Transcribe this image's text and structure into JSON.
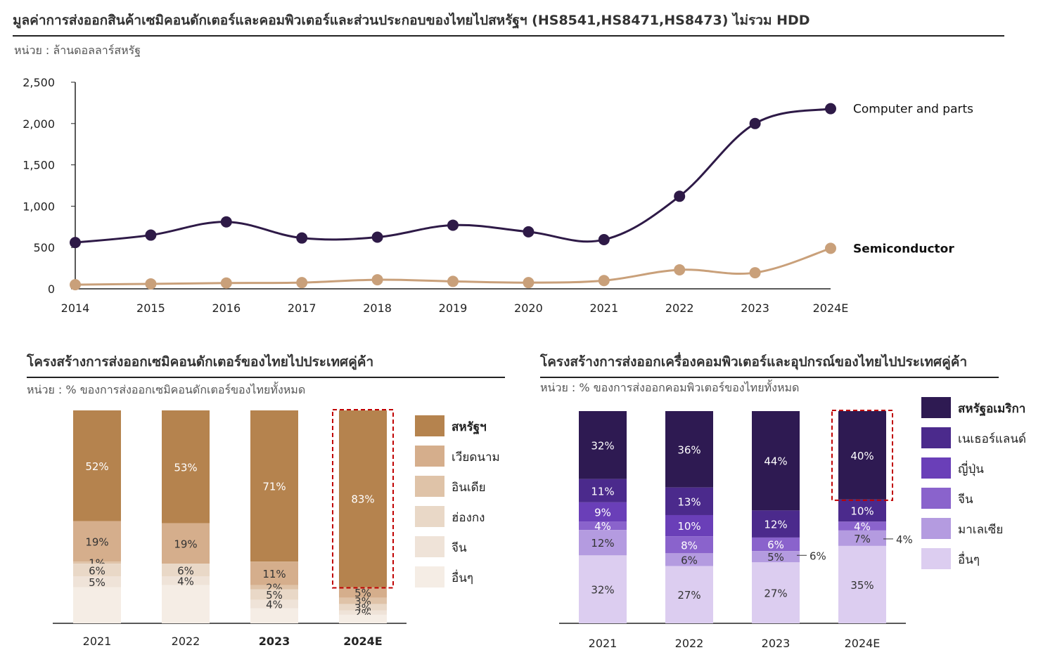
{
  "title": "มูลค่าการส่งออกสินค้าเซมิคอนดักเตอร์และคอมพิวเตอร์และส่วนประกอบของไทยไปสหรัฐฯ  (HS8541,HS8471,HS8473) ไม่รวม HDD",
  "unit_top": "หน่วย : ล้านดอลลาร์สหรัฐ",
  "chart_data": [
    {
      "type": "line",
      "x": [
        "2014",
        "2015",
        "2016",
        "2017",
        "2018",
        "2019",
        "2020",
        "2021",
        "2022",
        "2023",
        "2024E"
      ],
      "ylim": [
        0,
        2500
      ],
      "yticks": [
        "0",
        "500",
        "1,000",
        "1,500",
        "2,000",
        "2,500"
      ],
      "ytick_values": [
        0,
        500,
        1000,
        1500,
        2000,
        2500
      ],
      "series": [
        {
          "name": "Computer and parts",
          "color": "#2e1a47",
          "values": [
            560,
            650,
            810,
            615,
            625,
            770,
            690,
            595,
            1120,
            2000,
            2180
          ]
        },
        {
          "name": "Semiconductor",
          "color": "#c9a07a",
          "values": [
            50,
            60,
            70,
            75,
            110,
            90,
            75,
            100,
            230,
            195,
            490
          ]
        }
      ]
    },
    {
      "type": "bar",
      "stacked": true,
      "title": "โครงสร้างการส่งออกเซมิคอนดักเตอร์ของไทยไปประเทศคู่ค้า",
      "unit": "หน่วย : % ของการส่งออกเซมิคอนดักเตอร์ของไทยทั้งหมด",
      "categories": [
        "2021",
        "2022",
        "2023",
        "2024E"
      ],
      "bold_categories": [
        "2023",
        "2024E"
      ],
      "series": [
        {
          "name": "สหรัฐฯ",
          "color": "#b5834e",
          "values": [
            52,
            53,
            71,
            83
          ],
          "labels": [
            "52%",
            "53%",
            "71%",
            "83%"
          ]
        },
        {
          "name": "เวียดนาม",
          "color": "#d5ae8c",
          "values": [
            19,
            19,
            11,
            5
          ],
          "labels": [
            "19%",
            "19%",
            "11%",
            "5%"
          ]
        },
        {
          "name": "อินเดีย",
          "color": "#dfc3a8",
          "values": [
            1,
            0,
            2,
            3
          ],
          "labels": [
            "1%",
            "",
            "2%",
            "3%"
          ]
        },
        {
          "name": "ฮ่องกง",
          "color": "#e9d8c7",
          "values": [
            6,
            6,
            5,
            3
          ],
          "labels": [
            "6%",
            "6%",
            "5%",
            "3%"
          ]
        },
        {
          "name": "จีน",
          "color": "#efe3d8",
          "values": [
            5,
            4,
            4,
            2
          ],
          "labels": [
            "5%",
            "4%",
            "4%",
            "2%"
          ]
        },
        {
          "name": "อื่นๆ",
          "color": "#f5ede5",
          "values": [
            17,
            18,
            7,
            4
          ],
          "labels": [
            "",
            "",
            "",
            ""
          ]
        }
      ],
      "highlight": "2024E"
    },
    {
      "type": "bar",
      "stacked": true,
      "title": "โครงสร้างการส่งออกเครื่องคอมพิวเตอร์และอุปกรณ์ของไทยไปประเทศคู่ค้า",
      "unit": "หน่วย : % ของการส่งออกคอมพิวเตอร์ของไทยทั้งหมด",
      "categories": [
        "2021",
        "2022",
        "2023",
        "2024E"
      ],
      "series": [
        {
          "name": "สหรัฐอเมริกา",
          "color": "#2e1a52",
          "values": [
            32,
            36,
            44,
            40
          ],
          "labels": [
            "32%",
            "36%",
            "44%",
            "40%"
          ]
        },
        {
          "name": "เนเธอร์แลนด์",
          "color": "#4b2a8c",
          "values": [
            11,
            13,
            12,
            10
          ],
          "labels": [
            "11%",
            "13%",
            "12%",
            "10%"
          ]
        },
        {
          "name": "ญี่ปุ่น",
          "color": "#6a3fb8",
          "values": [
            9,
            10,
            0,
            0
          ],
          "labels": [
            "9%",
            "10%",
            "",
            ""
          ]
        },
        {
          "name": "จีน",
          "color": "#8a63cc",
          "values": [
            4,
            8,
            6,
            4
          ],
          "labels": [
            "4%",
            "8%",
            "6%",
            "4%"
          ]
        },
        {
          "name": "มาเลเซีย",
          "color": "#b49be0",
          "values": [
            12,
            6,
            5,
            7
          ],
          "labels": [
            "12%",
            "6%",
            "5%",
            "7%"
          ]
        },
        {
          "name": "อื่นๆ",
          "color": "#dccdf0",
          "values": [
            32,
            27,
            27,
            35
          ],
          "labels": [
            "32%",
            "27%",
            "27%",
            "35%"
          ]
        }
      ],
      "callouts": [
        "",
        "",
        "6%",
        "4%"
      ],
      "highlight": "2024E"
    }
  ]
}
